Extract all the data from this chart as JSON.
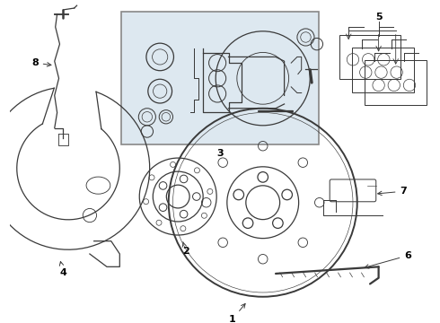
{
  "bg_color": "#ffffff",
  "line_color": "#3a3a3a",
  "box_bg": "#dde8f0",
  "box_border": "#888888",
  "label_color": "#000000",
  "fig_width": 4.9,
  "fig_height": 3.6,
  "dpi": 100,
  "lw": 0.9
}
